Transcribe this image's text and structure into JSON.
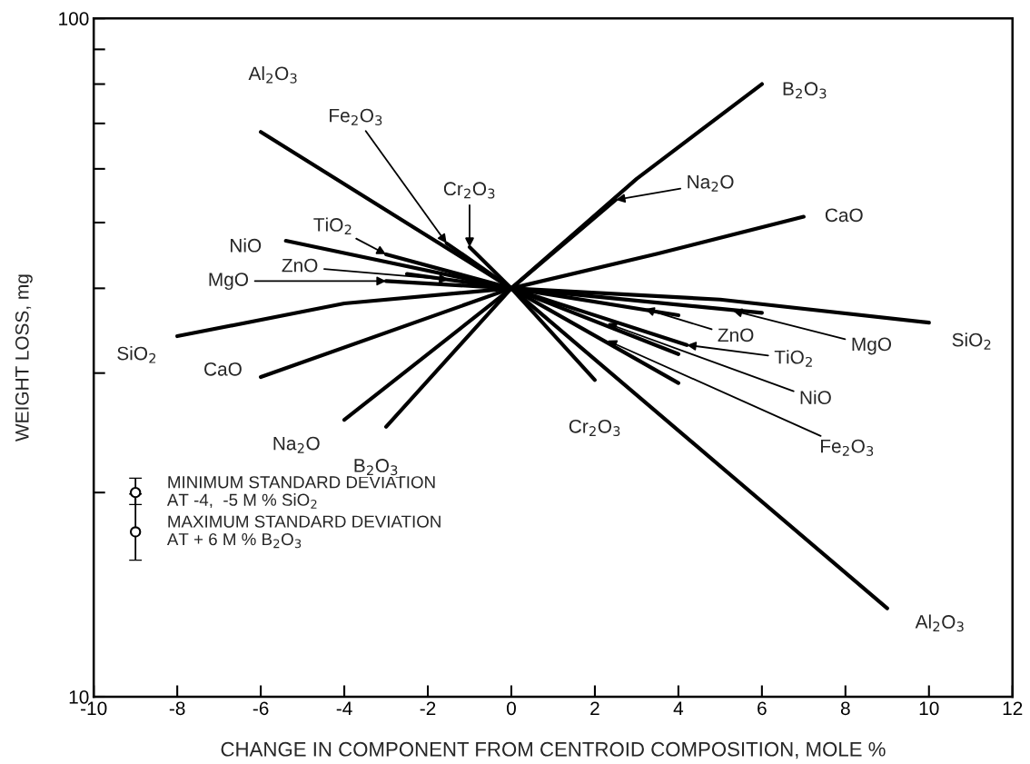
{
  "chart_data": {
    "type": "line",
    "xlabel": "CHANGE IN COMPONENT FROM CENTROID COMPOSITION, MOLE %",
    "ylabel": "WEIGHT LOSS, mg",
    "log": "y",
    "xlim": [
      -10,
      12
    ],
    "xticks": [
      -10,
      -8,
      -6,
      -4,
      -2,
      0,
      2,
      4,
      6,
      8,
      10,
      12
    ],
    "ylim": [
      10,
      100
    ],
    "yticks": [
      10,
      {
        "value": 20,
        "label": null
      },
      {
        "value": 30,
        "label": null
      },
      {
        "value": 40,
        "label": null
      },
      {
        "value": 50,
        "label": null
      },
      {
        "value": 60,
        "label": null
      },
      {
        "value": 70,
        "label": null
      },
      {
        "value": 80,
        "label": null
      },
      {
        "value": 90,
        "label": null
      },
      100
    ],
    "grid": false,
    "series": [
      {
        "color": "#000000",
        "x": [
          -6,
          0,
          9
        ],
        "values": [
          68,
          40,
          13.5
        ]
      },
      {
        "color": "#000000",
        "x": [
          -3,
          0,
          3,
          6
        ],
        "values": [
          25,
          40,
          58,
          80
        ]
      },
      {
        "color": "#000000",
        "x": [
          -4,
          0,
          2.5
        ],
        "values": [
          25.6,
          40,
          54
        ]
      },
      {
        "color": "#000000",
        "x": [
          -6,
          0,
          3.5,
          7
        ],
        "values": [
          29.6,
          40,
          45,
          51
        ]
      },
      {
        "color": "#000000",
        "x": [
          -8,
          -4,
          0,
          5,
          10
        ],
        "values": [
          34,
          38,
          40,
          38.5,
          35.6
        ]
      },
      {
        "color": "#000000",
        "x": [
          -3,
          0,
          6
        ],
        "values": [
          41,
          40,
          36.8
        ]
      },
      {
        "color": "#000000",
        "x": [
          -2.5,
          0,
          4
        ],
        "values": [
          42,
          40,
          36.5
        ]
      },
      {
        "color": "#000000",
        "x": [
          -3,
          0,
          4.2
        ],
        "values": [
          44.9,
          40,
          33
        ]
      },
      {
        "color": "#000000",
        "x": [
          -5.4,
          0,
          4
        ],
        "values": [
          47,
          40,
          32
        ]
      },
      {
        "color": "#000000",
        "x": [
          -1.55,
          0,
          4
        ],
        "values": [
          46.6,
          40,
          29
        ]
      },
      {
        "color": "#000000",
        "x": [
          -1,
          0,
          2
        ],
        "values": [
          46,
          40,
          29.3
        ]
      },
      {
        "type": "scatter",
        "marker": "circle",
        "color": "#000000",
        "x": [
          -9,
          -9
        ],
        "values": [
          20,
          17.5
        ],
        "errors": [
          [
            19.2,
            21
          ],
          [
            15.9,
            19.9
          ]
        ]
      }
    ],
    "annotations": [
      {
        "text": "Al$_{2}$O$_{3}$",
        "x": -6,
        "y": 68
      },
      {
        "text": "Al$_{2}$O$_{3}$",
        "x": 9,
        "y": 13.5
      },
      {
        "text": "B$_{2}$O$_{3}$",
        "x": 6,
        "y": 80
      },
      {
        "text": "B$_{2}$O$_{3}$",
        "x": -3,
        "y": 25
      },
      {
        "text": "Na$_{2}$O",
        "x": 2.5,
        "y": 54
      },
      {
        "text": "Na$_{2}$O",
        "x": -4,
        "y": 25.6
      },
      {
        "text": "CaO",
        "x": 7,
        "y": 51
      },
      {
        "text": "CaO",
        "x": -6,
        "y": 29.6
      },
      {
        "text": "SiO$_{2}$",
        "x": 10,
        "y": 35.6
      },
      {
        "text": "SiO$_{2}$",
        "x": -8,
        "y": 34
      },
      {
        "text": "MgO",
        "x": -3,
        "y": 41
      },
      {
        "text": "MgO",
        "x": 5.3,
        "y": 37.1
      },
      {
        "text": "ZnO",
        "x": -1.5,
        "y": 41.2
      },
      {
        "text": "ZnO",
        "x": 3.2,
        "y": 37.3
      },
      {
        "text": "TiO$_{2}$",
        "x": -3,
        "y": 44.9
      },
      {
        "text": "TiO$_{2}$",
        "x": 4.2,
        "y": 33
      },
      {
        "text": "NiO",
        "x": -5.4,
        "y": 47
      },
      {
        "text": "NiO",
        "x": 2.3,
        "y": 35.5
      },
      {
        "text": "Fe$_{2}$O$_{3}$",
        "x": -1.55,
        "y": 46.6
      },
      {
        "text": "Fe$_{2}$O$_{3}$",
        "x": 2.3,
        "y": 33.5
      },
      {
        "text": "Cr$_{2}$O$_{3}$",
        "x": -1,
        "y": 46
      },
      {
        "text": "Cr$_{2}$O$_{3}$",
        "x": 2,
        "y": 29.3
      },
      "MINIMUM STANDARD DEVIATION\nAT -4,  -5 M % SiO$_{2}$",
      "MAXIMUM STANDARD DEVIATION\nAT + 6 M % B$_{2}$O$_{3}$"
    ]
  }
}
